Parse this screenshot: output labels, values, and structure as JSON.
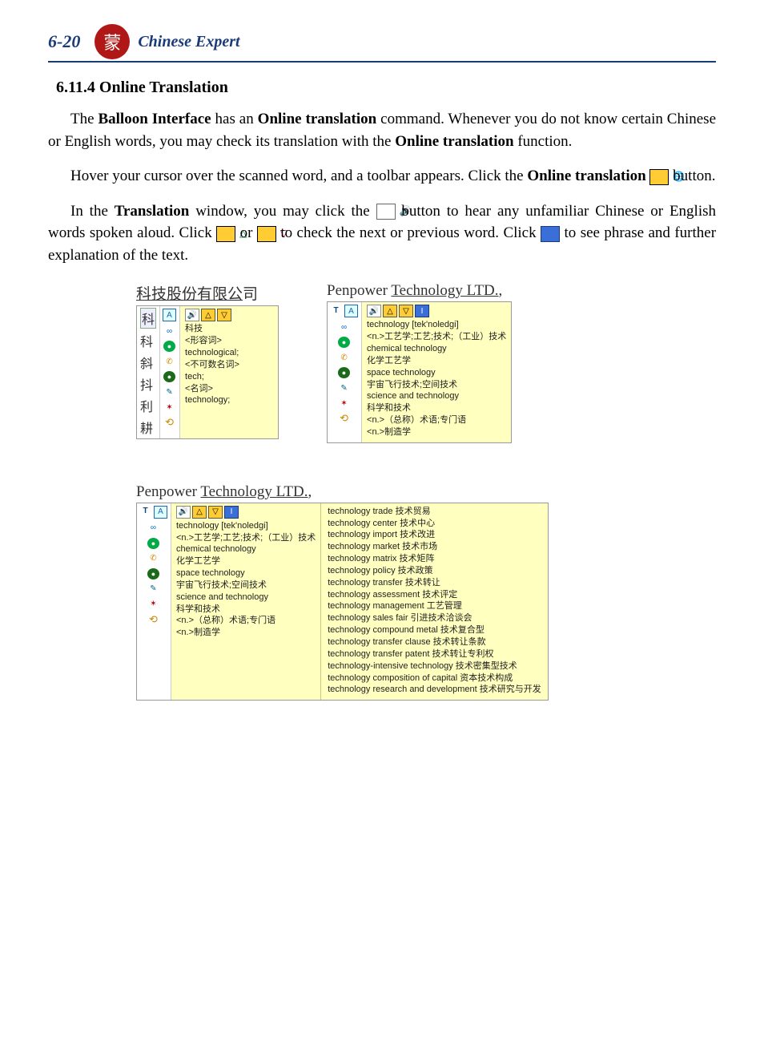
{
  "header": {
    "page_number": "6-20",
    "doc_title": "Chinese Expert",
    "logo_glyph": "蒙"
  },
  "section": {
    "heading": "6.11.4  Online Translation",
    "para1_pre": "The ",
    "para1_b1": "Balloon Interface",
    "para1_mid1": " has an ",
    "para1_b2": "Online translation",
    "para1_mid2": " command. Whenever you do not know certain Chinese or English words, you may check its translation with the ",
    "para1_b3": "Online translation",
    "para1_post": " function.",
    "para2_pre": "Hover your cursor over the scanned word, and a toolbar appears. Click the ",
    "para2_b1": "Online translation",
    "para2_post": " button.",
    "para3_pre": "In the ",
    "para3_b1": "Translation",
    "para3_mid1": " window, you may click the ",
    "para3_mid2": " button to hear any unfamiliar Chinese or English words spoken aloud. Click ",
    "para3_mid3": " or ",
    "para3_mid4": " to check the next or previous word. Click ",
    "para3_post": " to see phrase and further explanation of the text."
  },
  "fig1": {
    "title_uline": "科技股份有限公",
    "title_after": "司",
    "candidates": [
      "科",
      "科",
      "斜",
      "抖",
      "利",
      "耕"
    ],
    "def_word": "科技",
    "lines": [
      "<形容词>",
      "technological;",
      "<不可数名词>",
      "tech;",
      "<名词>",
      "technology;"
    ]
  },
  "fig2": {
    "title_pre": "Penpower ",
    "title_uline": "Technology LTD.",
    "title_after": ",",
    "headword": "technology [tek'noledgi]",
    "lines": [
      "<n.>工艺学;工艺;技术;（工业）技术",
      "chemical technology",
      "化学工艺学",
      "space technology",
      "宇宙飞行技术;空间技术",
      "science and technology",
      "科学和技术",
      "<n.>（总称）术语;专门语",
      "<n.>制造学"
    ]
  },
  "fig3": {
    "title_pre": "Penpower ",
    "title_uline": "Technology LTD.",
    "title_after": ",",
    "headword": "technology [tek'noledgi]",
    "left_lines": [
      "<n.>工艺学;工艺;技术;（工业）技术",
      "chemical technology",
      "化学工艺学",
      "space technology",
      "宇宙飞行技术;空间技术",
      "science and technology",
      "科学和技术",
      "<n.>（总称）术语;专门语",
      "<n.>制造学"
    ],
    "right_lines": [
      "technology trade 技术贸易",
      "technology center 技术中心",
      "technology import 技术改进",
      "technology market 技术市场",
      "technology matrix 技术矩阵",
      "technology policy 技术政策",
      "technology transfer 技术转让",
      "technology assessment 技术评定",
      "technology management 工艺管理",
      "technology sales fair 引进技术洽谈会",
      "technology compound metal 技术复合型",
      "technology transfer clause 技术转让条款",
      "technology transfer patent 技术转让专利权",
      "technology-intensive technology 技术密集型技术",
      "technology composition of capital 资本技术构成",
      "technology research and development 技术研究与开发"
    ]
  },
  "tooltray": {
    "letters": [
      "T",
      "A"
    ],
    "speaker_glyph": "🔊",
    "up_glyph": "△",
    "down_glyph": "▽",
    "expand_glyph": "I"
  }
}
